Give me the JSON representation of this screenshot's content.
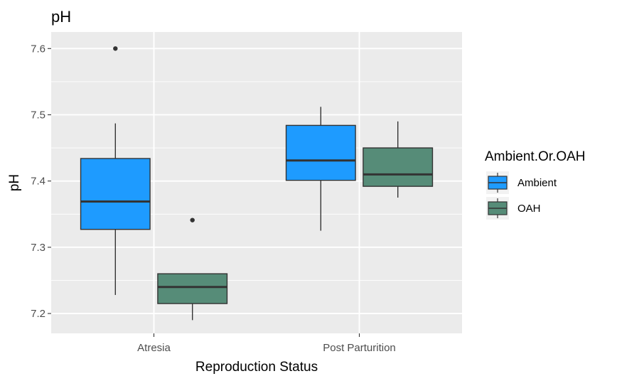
{
  "chart_data": {
    "type": "boxplot",
    "title": "pH",
    "xlabel": "Reproduction Status",
    "ylabel": "pH",
    "ylim": [
      7.17,
      7.625
    ],
    "yticks": [
      7.2,
      7.3,
      7.4,
      7.5,
      7.6
    ],
    "ytick_labels": [
      "7.2",
      "7.3",
      "7.4",
      "7.5",
      "7.6"
    ],
    "categories": [
      "Atresia",
      "Post Parturition"
    ],
    "legend": {
      "title": "Ambient.Or.OAH",
      "position": "right"
    },
    "grid": true,
    "series": [
      {
        "name": "Ambient",
        "color": "#1e9bff",
        "boxes": [
          {
            "category": "Atresia",
            "whisker_low": 7.228,
            "q1": 7.327,
            "median": 7.369,
            "q3": 7.434,
            "whisker_high": 7.487,
            "outliers": [
              7.6
            ]
          },
          {
            "category": "Post Parturition",
            "whisker_low": 7.325,
            "q1": 7.401,
            "median": 7.431,
            "q3": 7.484,
            "whisker_high": 7.512,
            "outliers": []
          }
        ]
      },
      {
        "name": "OAH",
        "color": "#568c78",
        "boxes": [
          {
            "category": "Atresia",
            "whisker_low": 7.19,
            "q1": 7.215,
            "median": 7.24,
            "q3": 7.26,
            "whisker_high": 7.26,
            "outliers": [
              7.341
            ]
          },
          {
            "category": "Post Parturition",
            "whisker_low": 7.375,
            "q1": 7.392,
            "median": 7.41,
            "q3": 7.45,
            "whisker_high": 7.49,
            "outliers": []
          }
        ]
      }
    ]
  }
}
